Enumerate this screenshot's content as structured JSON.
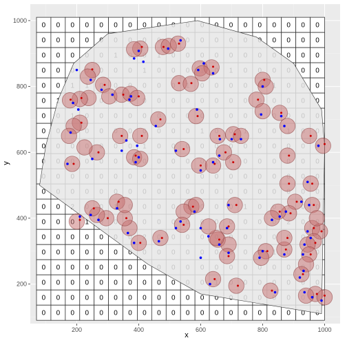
{
  "chart_data": {
    "type": "scatter",
    "title": "",
    "xlabel": "x",
    "ylabel": "y",
    "xlim": [
      50,
      1050
    ],
    "ylim": [
      80,
      1050
    ],
    "x_ticks": [
      200,
      400,
      600,
      800,
      1000
    ],
    "y_ticks": [
      200,
      400,
      600,
      800,
      1000
    ],
    "grid": true,
    "background": "#ebebeb",
    "grid_overlay": {
      "x_range": [
        70,
        1000
      ],
      "y_range": [
        90,
        1010
      ],
      "cols": 20,
      "rows": 20,
      "fill": "#ffffff",
      "line_color": "#333333",
      "counts": [
        [
          0,
          0,
          0,
          0,
          0,
          0,
          0,
          0,
          0,
          0,
          0,
          0,
          0,
          0,
          0,
          0,
          0,
          0,
          0,
          0
        ],
        [
          0,
          0,
          0,
          0,
          0,
          0,
          0,
          0,
          0,
          0,
          0,
          0,
          0,
          0,
          0,
          0,
          0,
          0,
          0,
          0
        ],
        [
          0,
          0,
          0,
          0,
          0,
          1,
          0,
          0,
          1,
          0,
          0,
          0,
          0,
          0,
          0,
          0,
          0,
          0,
          0,
          0
        ],
        [
          0,
          0,
          0,
          0,
          0,
          0,
          0,
          1,
          0,
          0,
          0,
          1,
          0,
          1,
          0,
          0,
          0,
          0,
          0,
          0
        ],
        [
          0,
          0,
          1,
          1,
          0,
          0,
          0,
          0,
          0,
          0,
          1,
          0,
          0,
          0,
          0,
          0,
          1,
          0,
          0,
          0
        ],
        [
          0,
          1,
          1,
          2,
          0,
          0,
          1,
          0,
          0,
          0,
          0,
          0,
          0,
          0,
          0,
          0,
          0,
          0,
          0,
          0
        ],
        [
          0,
          0,
          1,
          0,
          0,
          0,
          0,
          0,
          0,
          0,
          0,
          0,
          0,
          0,
          0,
          0,
          0,
          0,
          0,
          0
        ],
        [
          0,
          0,
          2,
          0,
          0,
          0,
          0,
          0,
          0,
          0,
          0,
          1,
          0,
          0,
          1,
          0,
          0,
          1,
          0,
          0
        ],
        [
          0,
          0,
          0,
          0,
          0,
          0,
          0,
          1,
          0,
          0,
          0,
          0,
          0,
          0,
          0,
          0,
          0,
          0,
          0,
          0
        ],
        [
          0,
          0,
          0,
          0,
          0,
          0,
          0,
          0,
          0,
          0,
          0,
          0,
          1,
          0,
          0,
          0,
          0,
          0,
          0,
          0
        ],
        [
          0,
          0,
          0,
          0,
          0,
          0,
          0,
          0,
          0,
          0,
          0,
          0,
          0,
          0,
          0,
          0,
          0,
          0,
          0,
          0
        ],
        [
          0,
          0,
          0,
          0,
          0,
          0,
          0,
          0,
          0,
          0,
          0,
          0,
          0,
          0,
          0,
          0,
          0,
          0,
          0,
          0
        ],
        [
          0,
          0,
          2,
          0,
          0,
          1,
          0,
          0,
          0,
          0,
          0,
          0,
          0,
          0,
          1,
          0,
          0,
          1,
          0,
          0
        ],
        [
          0,
          0,
          0,
          1,
          0,
          0,
          0,
          0,
          0,
          0,
          0,
          0,
          0,
          0,
          0,
          0,
          0,
          2,
          0,
          0
        ],
        [
          0,
          0,
          0,
          0,
          0,
          0,
          0,
          2,
          0,
          0,
          0,
          0,
          0,
          0,
          0,
          0,
          0,
          0,
          0,
          0
        ],
        [
          0,
          0,
          0,
          0,
          0,
          0,
          0,
          0,
          0,
          0,
          0,
          0,
          0,
          0,
          0,
          0,
          1,
          0,
          0,
          0
        ],
        [
          0,
          0,
          0,
          0,
          0,
          0,
          0,
          0,
          0,
          0,
          0,
          0,
          0,
          0,
          0,
          0,
          0,
          0,
          0,
          0
        ],
        [
          0,
          0,
          0,
          0,
          0,
          0,
          0,
          0,
          0,
          0,
          0,
          0,
          1,
          0,
          0,
          0,
          0,
          0,
          0,
          0
        ],
        [
          0,
          0,
          0,
          0,
          0,
          0,
          0,
          0,
          0,
          0,
          0,
          0,
          0,
          0,
          0,
          0,
          0,
          0,
          0,
          0
        ],
        [
          0,
          0,
          0,
          0,
          0,
          0,
          0,
          0,
          0,
          0,
          0,
          0,
          0,
          0,
          0,
          0,
          0,
          0,
          0,
          0
        ]
      ]
    },
    "hull": {
      "fill": "#e6e6e6",
      "stroke": "#333333",
      "points": [
        [
          590,
          1000
        ],
        [
          780,
          950
        ],
        [
          900,
          870
        ],
        [
          990,
          730
        ],
        [
          1000,
          620
        ],
        [
          990,
          110
        ],
        [
          600,
          170
        ],
        [
          430,
          260
        ],
        [
          80,
          500
        ],
        [
          100,
          620
        ],
        [
          140,
          760
        ],
        [
          190,
          870
        ],
        [
          300,
          960
        ]
      ]
    },
    "buffers": {
      "fill": "#c87070",
      "stroke": "#8b3a3a",
      "radius": 25,
      "points": [
        [
          405,
          915
        ],
        [
          385,
          913
        ],
        [
          478,
          920
        ],
        [
          497,
          923
        ],
        [
          527,
          930
        ],
        [
          250,
          850
        ],
        [
          236,
          830
        ],
        [
          285,
          805
        ],
        [
          305,
          770
        ],
        [
          345,
          775
        ],
        [
          373,
          778
        ],
        [
          395,
          765
        ],
        [
          238,
          765
        ],
        [
          210,
          762
        ],
        [
          178,
          758
        ],
        [
          210,
          690
        ],
        [
          190,
          680
        ],
        [
          175,
          650
        ],
        [
          340,
          650
        ],
        [
          405,
          650
        ],
        [
          385,
          585
        ],
        [
          405,
          580
        ],
        [
          265,
          600
        ],
        [
          225,
          615
        ],
        [
          185,
          565
        ],
        [
          463,
          700
        ],
        [
          585,
          710
        ],
        [
          655,
          650
        ],
        [
          705,
          655
        ],
        [
          730,
          650
        ],
        [
          540,
          610
        ],
        [
          595,
          560
        ],
        [
          640,
          560
        ],
        [
          675,
          600
        ],
        [
          705,
          570
        ],
        [
          530,
          810
        ],
        [
          568,
          808
        ],
        [
          597,
          855
        ],
        [
          635,
          858
        ],
        [
          605,
          840
        ],
        [
          780,
          760
        ],
        [
          800,
          725
        ],
        [
          800,
          820
        ],
        [
          810,
          800
        ],
        [
          855,
          720
        ],
        [
          880,
          680
        ],
        [
          880,
          590
        ],
        [
          880,
          505
        ],
        [
          950,
          650
        ],
        [
          995,
          620
        ],
        [
          955,
          505
        ],
        [
          905,
          450
        ],
        [
          885,
          415
        ],
        [
          850,
          420
        ],
        [
          830,
          400
        ],
        [
          960,
          370
        ],
        [
          985,
          360
        ],
        [
          965,
          330
        ],
        [
          945,
          320
        ],
        [
          950,
          290
        ],
        [
          940,
          260
        ],
        [
          925,
          230
        ],
        [
          970,
          170
        ],
        [
          1000,
          160
        ],
        [
          940,
          165
        ],
        [
          825,
          180
        ],
        [
          810,
          300
        ],
        [
          795,
          280
        ],
        [
          870,
          305
        ],
        [
          870,
          340
        ],
        [
          710,
          440
        ],
        [
          685,
          375
        ],
        [
          655,
          335
        ],
        [
          690,
          320
        ],
        [
          685,
          285
        ],
        [
          650,
          340
        ],
        [
          625,
          375
        ],
        [
          570,
          435
        ],
        [
          545,
          420
        ],
        [
          540,
          380
        ],
        [
          470,
          340
        ],
        [
          400,
          325
        ],
        [
          370,
          370
        ],
        [
          355,
          400
        ],
        [
          330,
          450
        ],
        [
          355,
          440
        ],
        [
          295,
          400
        ],
        [
          265,
          410
        ],
        [
          250,
          430
        ],
        [
          200,
          390
        ],
        [
          640,
          215
        ],
        [
          715,
          195
        ],
        [
          585,
          440
        ],
        [
          960,
          440
        ],
        [
          975,
          400
        ]
      ]
    },
    "points_blue": {
      "color": "#0000ff",
      "points": [
        [
          385,
          885
        ],
        [
          415,
          875
        ],
        [
          495,
          915
        ],
        [
          535,
          940
        ],
        [
          400,
          908
        ],
        [
          245,
          820
        ],
        [
          200,
          850
        ],
        [
          280,
          790
        ],
        [
          315,
          775
        ],
        [
          375,
          770
        ],
        [
          370,
          760
        ],
        [
          188,
          750
        ],
        [
          205,
          730
        ],
        [
          180,
          660
        ],
        [
          360,
          636
        ],
        [
          400,
          585
        ],
        [
          390,
          570
        ],
        [
          250,
          580
        ],
        [
          170,
          565
        ],
        [
          588,
          730
        ],
        [
          662,
          640
        ],
        [
          700,
          640
        ],
        [
          730,
          640
        ],
        [
          520,
          605
        ],
        [
          600,
          545
        ],
        [
          640,
          570
        ],
        [
          660,
          590
        ],
        [
          592,
          850
        ],
        [
          640,
          840
        ],
        [
          610,
          870
        ],
        [
          795,
          715
        ],
        [
          800,
          800
        ],
        [
          860,
          710
        ],
        [
          870,
          680
        ],
        [
          980,
          620
        ],
        [
          945,
          510
        ],
        [
          925,
          450
        ],
        [
          875,
          420
        ],
        [
          855,
          405
        ],
        [
          830,
          395
        ],
        [
          945,
          360
        ],
        [
          955,
          340
        ],
        [
          935,
          320
        ],
        [
          930,
          290
        ],
        [
          932,
          240
        ],
        [
          920,
          220
        ],
        [
          960,
          160
        ],
        [
          990,
          150
        ],
        [
          935,
          175
        ],
        [
          840,
          175
        ],
        [
          800,
          300
        ],
        [
          790,
          280
        ],
        [
          870,
          290
        ],
        [
          690,
          440
        ],
        [
          685,
          370
        ],
        [
          660,
          320
        ],
        [
          690,
          295
        ],
        [
          625,
          345
        ],
        [
          600,
          370
        ],
        [
          580,
          420
        ],
        [
          535,
          390
        ],
        [
          465,
          330
        ],
        [
          385,
          325
        ],
        [
          365,
          355
        ],
        [
          330,
          430
        ],
        [
          270,
          395
        ],
        [
          245,
          410
        ],
        [
          210,
          405
        ],
        [
          630,
          200
        ],
        [
          950,
          440
        ],
        [
          455,
          680
        ],
        [
          345,
          605
        ],
        [
          395,
          620
        ],
        [
          520,
          370
        ],
        [
          600,
          280
        ]
      ]
    },
    "points_red": {
      "color": "#cc0000",
      "points": [
        [
          410,
          920
        ],
        [
          480,
          920
        ],
        [
          530,
          930
        ],
        [
          250,
          852
        ],
        [
          290,
          805
        ],
        [
          350,
          775
        ],
        [
          400,
          770
        ],
        [
          215,
          765
        ],
        [
          180,
          760
        ],
        [
          215,
          690
        ],
        [
          345,
          650
        ],
        [
          410,
          650
        ],
        [
          390,
          590
        ],
        [
          270,
          600
        ],
        [
          190,
          565
        ],
        [
          470,
          700
        ],
        [
          590,
          710
        ],
        [
          660,
          650
        ],
        [
          710,
          655
        ],
        [
          545,
          610
        ],
        [
          600,
          560
        ],
        [
          645,
          565
        ],
        [
          680,
          600
        ],
        [
          530,
          810
        ],
        [
          570,
          810
        ],
        [
          640,
          860
        ],
        [
          785,
          760
        ],
        [
          805,
          820
        ],
        [
          860,
          720
        ],
        [
          885,
          590
        ],
        [
          885,
          505
        ],
        [
          955,
          650
        ],
        [
          1000,
          625
        ],
        [
          960,
          505
        ],
        [
          910,
          450
        ],
        [
          890,
          415
        ],
        [
          855,
          420
        ],
        [
          965,
          370
        ],
        [
          990,
          360
        ],
        [
          970,
          325
        ],
        [
          955,
          290
        ],
        [
          930,
          230
        ],
        [
          975,
          170
        ],
        [
          1000,
          165
        ],
        [
          830,
          180
        ],
        [
          815,
          300
        ],
        [
          875,
          305
        ],
        [
          715,
          440
        ],
        [
          690,
          375
        ],
        [
          660,
          335
        ],
        [
          690,
          285
        ],
        [
          575,
          435
        ],
        [
          545,
          380
        ],
        [
          475,
          340
        ],
        [
          405,
          325
        ],
        [
          360,
          400
        ],
        [
          335,
          450
        ],
        [
          300,
          400
        ],
        [
          255,
          430
        ],
        [
          645,
          215
        ],
        [
          720,
          195
        ],
        [
          965,
          440
        ],
        [
          210,
          395
        ],
        [
          880,
          340
        ],
        [
          705,
          570
        ]
      ]
    }
  }
}
